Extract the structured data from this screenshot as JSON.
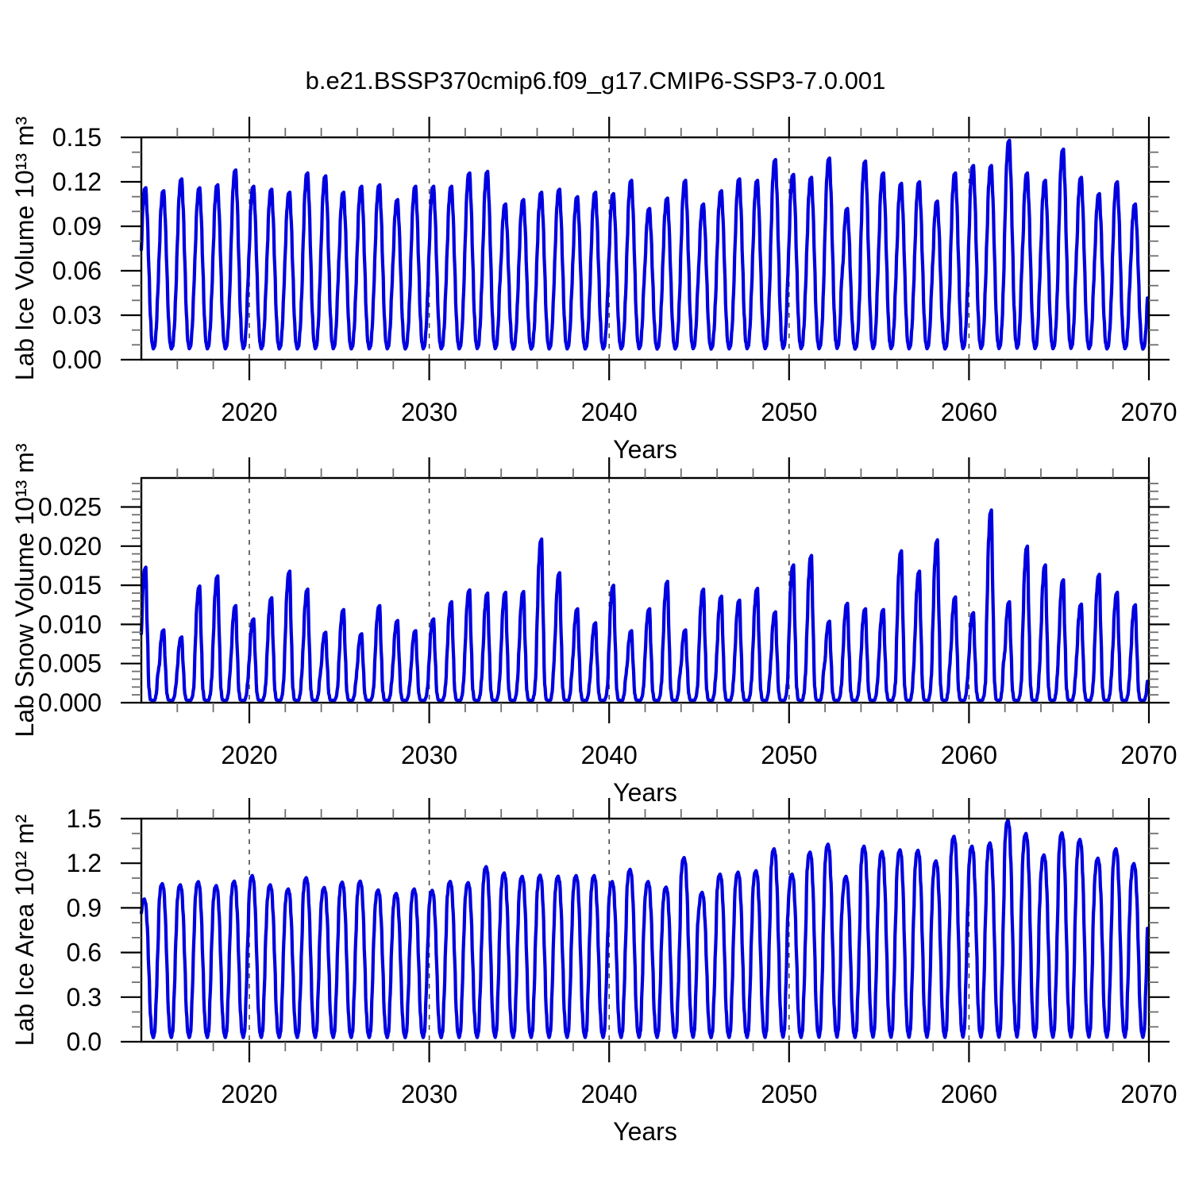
{
  "title": "b.e21.BSSP370cmip6.f09_g17.CMIP6-SSP3-7.0.001",
  "line_color": "#0000e0",
  "chart_data": [
    {
      "type": "line",
      "ylabel": "Lab Ice Volume 10¹³ m³",
      "xlabel": "Years",
      "xlim": [
        2014,
        2070
      ],
      "ylim": [
        0,
        0.15
      ],
      "yticks": [
        0,
        0.03,
        0.06,
        0.09,
        0.12,
        0.15
      ],
      "ytick_labels": [
        "0.00",
        "0.03",
        "0.06",
        "0.09",
        "0.12",
        "0.15"
      ],
      "ytick_minor_step": 0.01,
      "xticks": [
        2020,
        2030,
        2040,
        2050,
        2060,
        2070
      ],
      "xtick_labels": [
        "2020",
        "2030",
        "2040",
        "2050",
        "2060",
        "2070"
      ],
      "xtick_minor_step": 2,
      "gridlines_x": [
        2020,
        2030,
        2040,
        2050,
        2060
      ],
      "grid": "dashed-vertical-decades",
      "legend": "none",
      "series": {
        "name": "lab-ice-volume-monthly",
        "start_year": 2014,
        "annual_min": 0.006,
        "seasonal_profile": [
          0.62,
          0.88,
          0.99,
          1.0,
          0.82,
          0.52,
          0.22,
          0.055,
          0.012,
          0.03,
          0.14,
          0.36
        ],
        "annual_peaks": [
          0.116,
          0.114,
          0.122,
          0.116,
          0.118,
          0.128,
          0.117,
          0.115,
          0.113,
          0.126,
          0.124,
          0.113,
          0.117,
          0.118,
          0.108,
          0.117,
          0.117,
          0.117,
          0.126,
          0.127,
          0.105,
          0.108,
          0.113,
          0.115,
          0.11,
          0.113,
          0.112,
          0.121,
          0.102,
          0.109,
          0.121,
          0.105,
          0.114,
          0.122,
          0.121,
          0.135,
          0.125,
          0.123,
          0.136,
          0.102,
          0.134,
          0.126,
          0.119,
          0.12,
          0.107,
          0.126,
          0.131,
          0.131,
          0.148,
          0.126,
          0.121,
          0.142,
          0.123,
          0.112,
          0.12,
          0.105
        ]
      }
    },
    {
      "type": "line",
      "ylabel": "Lab Snow Volume 10¹³ m³",
      "xlabel": "Years",
      "xlim": [
        2014,
        2070
      ],
      "ylim": [
        0,
        0.0287
      ],
      "yticks": [
        0,
        0.005,
        0.01,
        0.015,
        0.02,
        0.025
      ],
      "ytick_labels": [
        "0.000",
        "0.005",
        "0.010",
        "0.015",
        "0.020",
        "0.025"
      ],
      "ytick_minor_step": 0.001,
      "xticks": [
        2020,
        2030,
        2040,
        2050,
        2060,
        2070
      ],
      "xtick_labels": [
        "2020",
        "2030",
        "2040",
        "2050",
        "2060",
        "2070"
      ],
      "xtick_minor_step": 2,
      "gridlines_x": [
        2020,
        2030,
        2040,
        2050,
        2060
      ],
      "grid": "dashed-vertical-decades",
      "legend": "none",
      "series": {
        "name": "lab-snow-volume-monthly",
        "start_year": 2014,
        "annual_min": 0.0003,
        "seasonal_profile": [
          0.5,
          0.83,
          0.98,
          1.0,
          0.52,
          0.1,
          0.005,
          0.0,
          0.0,
          0.002,
          0.05,
          0.2
        ],
        "annual_peaks": [
          0.0173,
          0.0093,
          0.0084,
          0.0149,
          0.0162,
          0.0124,
          0.0107,
          0.0134,
          0.0168,
          0.0145,
          0.009,
          0.0119,
          0.0088,
          0.0124,
          0.0105,
          0.0092,
          0.0107,
          0.0129,
          0.0144,
          0.014,
          0.0141,
          0.0142,
          0.0209,
          0.0166,
          0.012,
          0.0102,
          0.015,
          0.0092,
          0.012,
          0.0155,
          0.0093,
          0.0145,
          0.0136,
          0.0131,
          0.0146,
          0.0116,
          0.0176,
          0.0188,
          0.0104,
          0.0127,
          0.012,
          0.0119,
          0.0194,
          0.0168,
          0.0208,
          0.0135,
          0.0115,
          0.0246,
          0.0129,
          0.02,
          0.0176,
          0.0157,
          0.0126,
          0.0164,
          0.0141,
          0.0125
        ]
      }
    },
    {
      "type": "line",
      "ylabel": "Lab Ice Area 10¹² m²",
      "xlabel": "Years",
      "xlim": [
        2014,
        2070
      ],
      "ylim": [
        0,
        1.5
      ],
      "yticks": [
        0,
        0.3,
        0.6,
        0.9,
        1.2,
        1.5
      ],
      "ytick_labels": [
        "0.0",
        "0.3",
        "0.6",
        "0.9",
        "1.2",
        "1.5"
      ],
      "ytick_minor_step": 0.1,
      "xticks": [
        2020,
        2030,
        2040,
        2050,
        2060,
        2070
      ],
      "xtick_labels": [
        "2020",
        "2030",
        "2040",
        "2050",
        "2060",
        "2070"
      ],
      "xtick_minor_step": 2,
      "gridlines_x": [
        2020,
        2030,
        2040,
        2050,
        2060
      ],
      "grid": "dashed-vertical-decades",
      "legend": "none",
      "series": {
        "name": "lab-ice-area-monthly",
        "start_year": 2014,
        "annual_min": 0.02,
        "seasonal_profile": [
          0.9,
          0.985,
          1.0,
          0.965,
          0.8,
          0.5,
          0.18,
          0.04,
          0.008,
          0.05,
          0.3,
          0.63
        ],
        "annual_peaks": [
          0.96,
          1.063,
          1.055,
          1.076,
          1.05,
          1.08,
          1.117,
          1.055,
          1.027,
          1.103,
          1.037,
          1.073,
          1.08,
          1.02,
          0.997,
          1.027,
          1.018,
          1.078,
          1.07,
          1.177,
          1.135,
          1.112,
          1.12,
          1.113,
          1.117,
          1.117,
          1.077,
          1.159,
          1.077,
          1.04,
          1.238,
          1.004,
          1.127,
          1.14,
          1.15,
          1.297,
          1.127,
          1.275,
          1.328,
          1.112,
          1.315,
          1.279,
          1.29,
          1.287,
          1.216,
          1.381,
          1.315,
          1.337,
          1.49,
          1.4,
          1.256,
          1.405,
          1.36,
          1.234,
          1.297,
          1.198
        ]
      }
    }
  ]
}
